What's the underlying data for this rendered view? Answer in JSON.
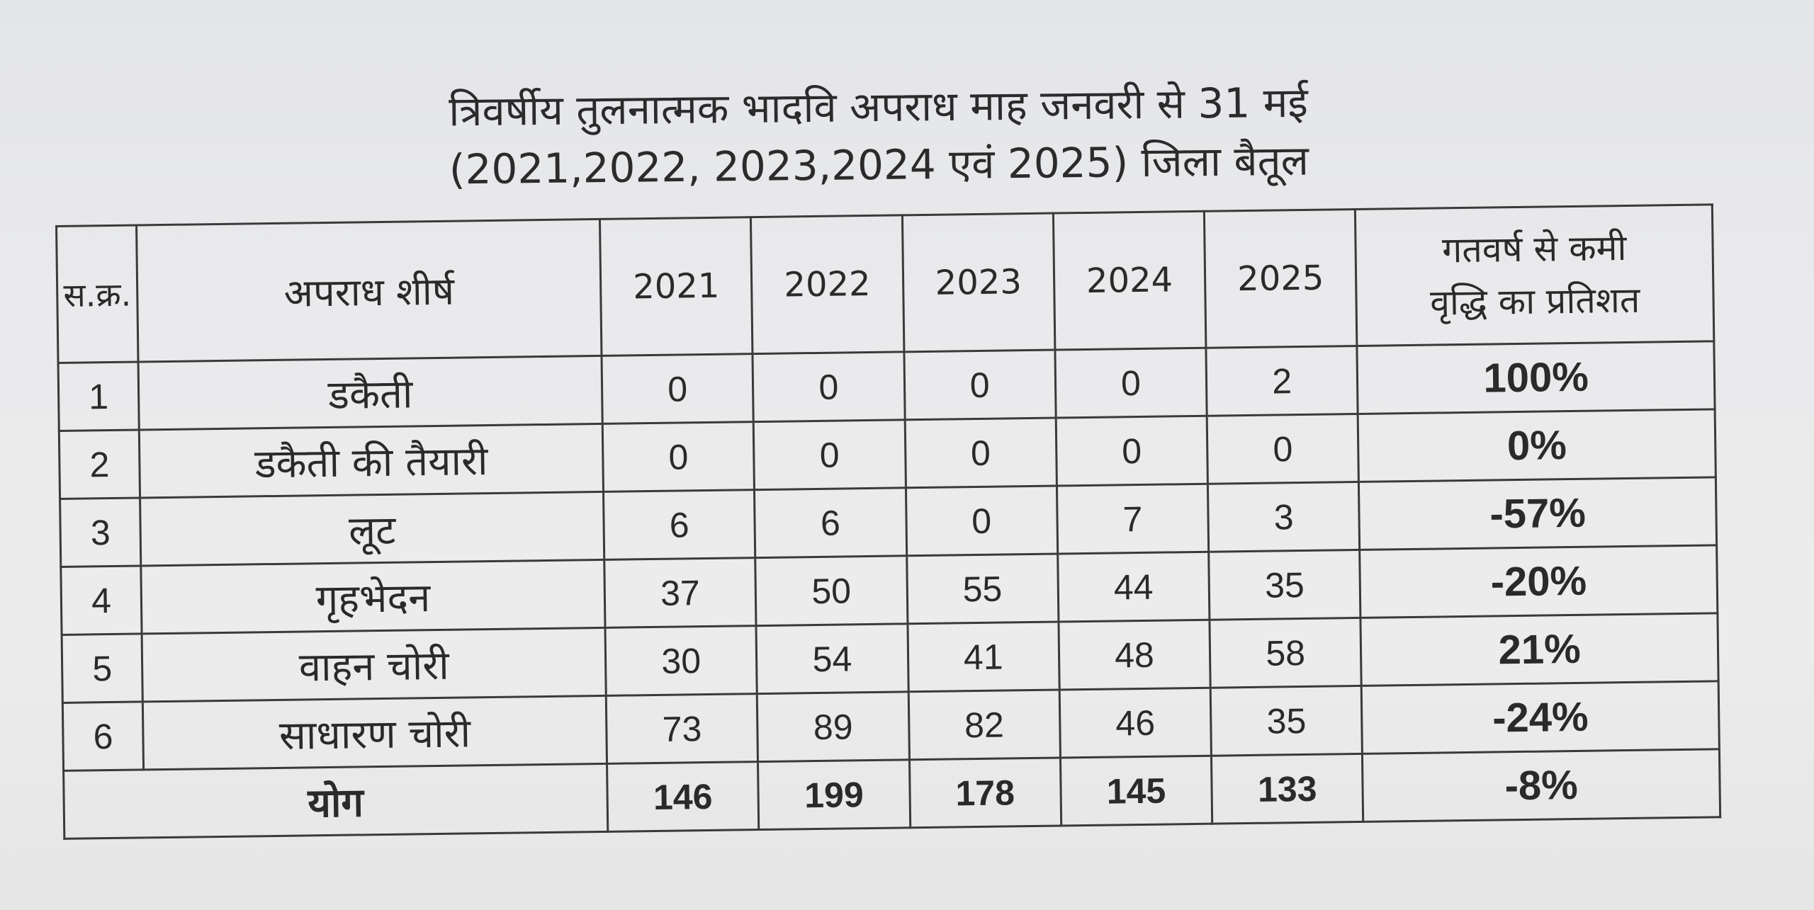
{
  "document": {
    "title_line1": "त्रिवर्षीय तुलनात्मक भादवि अपराध माह जनवरी से 31 मई",
    "title_line2": "(2021,2022, 2023,2024 एवं 2025) जिला बैतूल"
  },
  "table": {
    "headers": {
      "serial": "स.क्र.",
      "crime_head": "अपराध शीर्ष",
      "years": [
        "2021",
        "2022",
        "2023",
        "2024",
        "2025"
      ],
      "pct_line1": "गतवर्ष से कमी",
      "pct_line2": "वृद्धि का प्रतिशत"
    },
    "rows": [
      {
        "sn": "1",
        "name": "डकैती",
        "values": [
          "0",
          "0",
          "0",
          "0",
          "2"
        ],
        "pct": "100%"
      },
      {
        "sn": "2",
        "name": "डकैती की तैयारी",
        "values": [
          "0",
          "0",
          "0",
          "0",
          "0"
        ],
        "pct": "0%"
      },
      {
        "sn": "3",
        "name": "लूट",
        "values": [
          "6",
          "6",
          "0",
          "7",
          "3"
        ],
        "pct": "-57%"
      },
      {
        "sn": "4",
        "name": "गृहभेदन",
        "values": [
          "37",
          "50",
          "55",
          "44",
          "35"
        ],
        "pct": "-20%"
      },
      {
        "sn": "5",
        "name": "वाहन चोरी",
        "values": [
          "30",
          "54",
          "41",
          "48",
          "58"
        ],
        "pct": "21%"
      },
      {
        "sn": "6",
        "name": "साधारण चोरी",
        "values": [
          "73",
          "89",
          "82",
          "46",
          "35"
        ],
        "pct": "-24%"
      }
    ],
    "total": {
      "label": "योग",
      "values": [
        "146",
        "199",
        "178",
        "145",
        "133"
      ],
      "pct": "-8%"
    }
  }
}
